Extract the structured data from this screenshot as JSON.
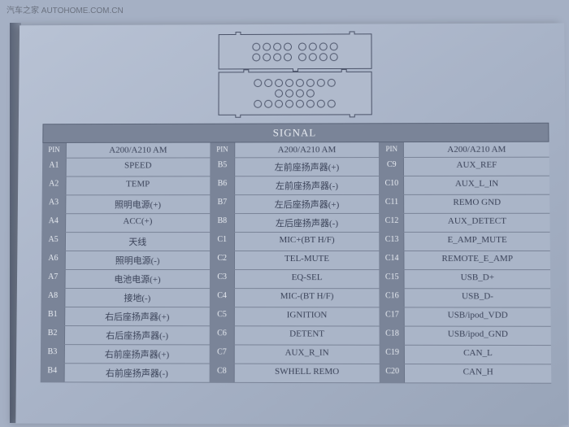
{
  "watermark_top": "汽车之家 AUTOHOME.COM.CN",
  "watermark_bottom": "汽车之家 AUTOHOME.COM.CN",
  "signal_title": "SIGNAL",
  "header": {
    "pin_label": "PIN",
    "model": "A200/A210 AM"
  },
  "col1": [
    {
      "pin": "A1",
      "sig": "SPEED"
    },
    {
      "pin": "A2",
      "sig": "TEMP"
    },
    {
      "pin": "A3",
      "sig": "照明电源(+)"
    },
    {
      "pin": "A4",
      "sig": "ACC(+)"
    },
    {
      "pin": "A5",
      "sig": "天线"
    },
    {
      "pin": "A6",
      "sig": "照明电源(-)"
    },
    {
      "pin": "A7",
      "sig": "电池电源(+)"
    },
    {
      "pin": "A8",
      "sig": "接地(-)"
    },
    {
      "pin": "B1",
      "sig": "右后座扬声器(+)"
    },
    {
      "pin": "B2",
      "sig": "右后座扬声器(-)"
    },
    {
      "pin": "B3",
      "sig": "右前座扬声器(+)"
    },
    {
      "pin": "B4",
      "sig": "右前座扬声器(-)"
    }
  ],
  "col2": [
    {
      "pin": "B5",
      "sig": "左前座扬声器(+)"
    },
    {
      "pin": "B6",
      "sig": "左前座扬声器(-)"
    },
    {
      "pin": "B7",
      "sig": "左后座扬声器(+)"
    },
    {
      "pin": "B8",
      "sig": "左后座扬声器(-)"
    },
    {
      "pin": "C1",
      "sig": "MIC+(BT H/F)"
    },
    {
      "pin": "C2",
      "sig": "TEL-MUTE"
    },
    {
      "pin": "C3",
      "sig": "EQ-SEL"
    },
    {
      "pin": "C4",
      "sig": "MIC-(BT H/F)"
    },
    {
      "pin": "C5",
      "sig": "IGNITION"
    },
    {
      "pin": "C6",
      "sig": "DETENT"
    },
    {
      "pin": "C7",
      "sig": "AUX_R_IN"
    },
    {
      "pin": "C8",
      "sig": "SWHELL REMO"
    }
  ],
  "col3": [
    {
      "pin": "C9",
      "sig": "AUX_REF"
    },
    {
      "pin": "C10",
      "sig": "AUX_L_IN"
    },
    {
      "pin": "C11",
      "sig": "REMO GND"
    },
    {
      "pin": "C12",
      "sig": "AUX_DETECT"
    },
    {
      "pin": "C13",
      "sig": "E_AMP_MUTE"
    },
    {
      "pin": "C14",
      "sig": "REMOTE_E_AMP"
    },
    {
      "pin": "C15",
      "sig": "USB_D+"
    },
    {
      "pin": "C16",
      "sig": "USB_D-"
    },
    {
      "pin": "C17",
      "sig": "USB/ipod_VDD"
    },
    {
      "pin": "C18",
      "sig": "USB/ipod_GND"
    },
    {
      "pin": "C19",
      "sig": "CAN_L"
    },
    {
      "pin": "C20",
      "sig": "CAN_H"
    }
  ]
}
